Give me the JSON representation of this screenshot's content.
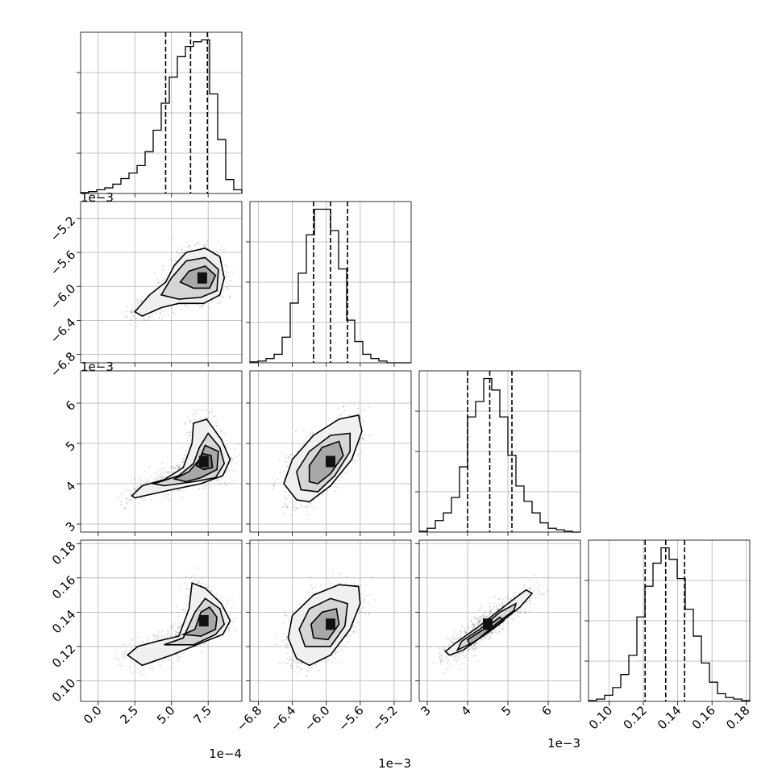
{
  "chart_data": {
    "type": "scatter",
    "subtype": "corner-plot",
    "grid": true,
    "parameters": [
      {
        "id": "p0",
        "multiplier_label": "1e−4",
        "range": [
          -1.2,
          9.8
        ],
        "ticks": [
          0.0,
          2.5,
          5.0,
          7.5
        ],
        "tick_labels": [
          "0.0",
          "2.5",
          "5.0",
          "7.5"
        ],
        "quantiles": [
          4.6,
          6.3,
          7.45
        ],
        "histogram": {
          "edges": [
            -1.2,
            -0.65,
            -0.1,
            0.45,
            1.0,
            1.55,
            2.1,
            2.65,
            3.2,
            3.75,
            4.3,
            4.85,
            5.4,
            5.95,
            6.5,
            7.05,
            7.6,
            8.15,
            8.7,
            9.25,
            9.8
          ],
          "counts": [
            1,
            2,
            4,
            6,
            10,
            16,
            22,
            30,
            45,
            68,
            97,
            125,
            147,
            158,
            163,
            165,
            107,
            58,
            15,
            4
          ]
        }
      },
      {
        "id": "p1",
        "multiplier_label": "1e−3",
        "range": [
          -6.9,
          -5.0
        ],
        "ticks": [
          -6.8,
          -6.4,
          -6.0,
          -5.6,
          -5.2
        ],
        "tick_labels": [
          "−6.8",
          "−6.4",
          "−6.0",
          "−5.6",
          "−5.2"
        ],
        "quantiles": [
          -6.15,
          -5.95,
          -5.75
        ],
        "histogram": {
          "edges": [
            -6.9,
            -6.805,
            -6.71,
            -6.615,
            -6.52,
            -6.425,
            -6.33,
            -6.235,
            -6.14,
            -6.045,
            -5.95,
            -5.855,
            -5.76,
            -5.665,
            -5.57,
            -5.475,
            -5.38,
            -5.285,
            -5.19,
            -5.095,
            -5.0
          ],
          "counts": [
            1,
            2,
            5,
            10,
            30,
            70,
            105,
            150,
            180,
            180,
            155,
            110,
            50,
            25,
            10,
            5,
            2,
            0,
            0,
            0
          ]
        }
      },
      {
        "id": "p2",
        "multiplier_label": "1e−3",
        "range": [
          2.8,
          6.8
        ],
        "ticks": [
          3,
          4,
          5,
          6
        ],
        "tick_labels": [
          "3",
          "4",
          "5",
          "6"
        ],
        "quantiles": [
          4.0,
          4.55,
          5.1
        ],
        "histogram": {
          "edges": [
            2.8,
            3.0,
            3.2,
            3.4,
            3.6,
            3.8,
            4.0,
            4.2,
            4.4,
            4.6,
            4.8,
            5.0,
            5.2,
            5.4,
            5.6,
            5.8,
            6.0,
            6.2,
            6.4,
            6.6,
            6.8
          ],
          "counts": [
            1,
            5,
            15,
            25,
            45,
            85,
            150,
            170,
            200,
            185,
            150,
            100,
            60,
            40,
            25,
            12,
            5,
            3,
            1,
            0
          ]
        }
      },
      {
        "id": "p3",
        "multiplier_label": "",
        "range": [
          0.088,
          0.182
        ],
        "ticks": [
          0.1,
          0.12,
          0.14,
          0.16,
          0.18
        ],
        "tick_labels": [
          "0.10",
          "0.12",
          "0.14",
          "0.16",
          "0.18"
        ],
        "quantiles": [
          0.121,
          0.133,
          0.144
        ],
        "histogram": {
          "edges": [
            0.088,
            0.0927,
            0.0974,
            0.1021,
            0.1068,
            0.1115,
            0.1162,
            0.1209,
            0.1256,
            0.1303,
            0.135,
            0.1397,
            0.1444,
            0.1491,
            0.1538,
            0.1585,
            0.1632,
            0.1679,
            0.1726,
            0.1773,
            0.182
          ],
          "counts": [
            1,
            3,
            8,
            18,
            35,
            60,
            110,
            150,
            180,
            200,
            185,
            160,
            120,
            85,
            50,
            25,
            10,
            5,
            3,
            1
          ]
        }
      }
    ],
    "pairs": [
      {
        "x": 0,
        "y": 1,
        "mode": [
          7.1,
          -5.9
        ],
        "contours": [
          [
            [
              2.5,
              -6.3
            ],
            [
              3.5,
              -6.1
            ],
            [
              4.6,
              -5.95
            ],
            [
              5.2,
              -5.75
            ],
            [
              6.0,
              -5.6
            ],
            [
              7.3,
              -5.55
            ],
            [
              8.3,
              -5.65
            ],
            [
              8.6,
              -5.9
            ],
            [
              8.3,
              -6.1
            ],
            [
              7.2,
              -6.2
            ],
            [
              5.5,
              -6.2
            ],
            [
              4.3,
              -6.25
            ],
            [
              3.0,
              -6.35
            ],
            [
              2.5,
              -6.3
            ]
          ],
          [
            [
              4.3,
              -6.1
            ],
            [
              5.0,
              -5.9
            ],
            [
              6.0,
              -5.7
            ],
            [
              7.3,
              -5.66
            ],
            [
              8.2,
              -5.8
            ],
            [
              8.1,
              -6.05
            ],
            [
              7.0,
              -6.13
            ],
            [
              5.5,
              -6.15
            ],
            [
              4.3,
              -6.1
            ]
          ],
          [
            [
              5.6,
              -5.95
            ],
            [
              6.2,
              -5.82
            ],
            [
              7.3,
              -5.76
            ],
            [
              8.0,
              -5.87
            ],
            [
              7.6,
              -6.02
            ],
            [
              6.5,
              -6.02
            ],
            [
              5.6,
              -5.95
            ]
          ]
        ]
      },
      {
        "x": 0,
        "y": 2,
        "mode": [
          7.2,
          4.55
        ],
        "contours": [
          [
            [
              2.3,
              3.7
            ],
            [
              3.0,
              3.95
            ],
            [
              4.5,
              4.1
            ],
            [
              5.8,
              4.4
            ],
            [
              6.4,
              5.0
            ],
            [
              6.5,
              5.5
            ],
            [
              7.4,
              5.6
            ],
            [
              8.4,
              5.1
            ],
            [
              9.0,
              4.6
            ],
            [
              8.5,
              4.2
            ],
            [
              7.0,
              4.0
            ],
            [
              5.0,
              3.85
            ],
            [
              2.5,
              3.65
            ],
            [
              2.3,
              3.7
            ]
          ],
          [
            [
              3.8,
              4.0
            ],
            [
              5.5,
              4.2
            ],
            [
              6.5,
              4.5
            ],
            [
              6.9,
              4.9
            ],
            [
              7.5,
              5.25
            ],
            [
              8.3,
              4.9
            ],
            [
              8.6,
              4.5
            ],
            [
              8.0,
              4.15
            ],
            [
              6.5,
              4.05
            ],
            [
              4.5,
              3.95
            ],
            [
              3.8,
              4.0
            ]
          ],
          [
            [
              5.2,
              4.12
            ],
            [
              6.2,
              4.3
            ],
            [
              6.9,
              4.6
            ],
            [
              7.3,
              4.95
            ],
            [
              8.2,
              4.8
            ],
            [
              8.1,
              4.35
            ],
            [
              7.0,
              4.15
            ],
            [
              6.0,
              4.05
            ],
            [
              5.2,
              4.12
            ]
          ],
          [
            [
              6.7,
              4.45
            ],
            [
              7.1,
              4.75
            ],
            [
              7.7,
              4.7
            ],
            [
              7.8,
              4.4
            ],
            [
              7.2,
              4.35
            ],
            [
              6.7,
              4.45
            ]
          ]
        ]
      },
      {
        "x": 1,
        "y": 2,
        "mode": [
          -5.95,
          4.55
        ],
        "contours": [
          [
            [
              -6.35,
              3.6
            ],
            [
              -6.5,
              4.0
            ],
            [
              -6.4,
              4.6
            ],
            [
              -6.15,
              5.2
            ],
            [
              -5.85,
              5.6
            ],
            [
              -5.62,
              5.7
            ],
            [
              -5.58,
              5.3
            ],
            [
              -5.7,
              4.6
            ],
            [
              -5.95,
              3.95
            ],
            [
              -6.2,
              3.55
            ],
            [
              -6.35,
              3.6
            ]
          ],
          [
            [
              -6.3,
              3.85
            ],
            [
              -6.35,
              4.3
            ],
            [
              -6.2,
              4.8
            ],
            [
              -5.95,
              5.2
            ],
            [
              -5.72,
              5.25
            ],
            [
              -5.72,
              4.8
            ],
            [
              -5.9,
              4.2
            ],
            [
              -6.1,
              3.8
            ],
            [
              -6.3,
              3.85
            ]
          ],
          [
            [
              -6.2,
              4.05
            ],
            [
              -6.2,
              4.45
            ],
            [
              -6.05,
              4.9
            ],
            [
              -5.85,
              5.05
            ],
            [
              -5.8,
              4.7
            ],
            [
              -5.95,
              4.25
            ],
            [
              -6.1,
              4.0
            ],
            [
              -6.2,
              4.05
            ]
          ]
        ]
      },
      {
        "x": 0,
        "y": 3,
        "mode": [
          7.2,
          0.135
        ],
        "contours": [
          [
            [
              2.0,
              0.115
            ],
            [
              2.7,
              0.12
            ],
            [
              4.0,
              0.123
            ],
            [
              5.5,
              0.126
            ],
            [
              6.2,
              0.142
            ],
            [
              6.4,
              0.157
            ],
            [
              7.3,
              0.154
            ],
            [
              8.4,
              0.145
            ],
            [
              9.0,
              0.135
            ],
            [
              8.5,
              0.127
            ],
            [
              7.0,
              0.122
            ],
            [
              5.0,
              0.115
            ],
            [
              3.0,
              0.109
            ],
            [
              2.0,
              0.115
            ]
          ],
          [
            [
              4.5,
              0.121
            ],
            [
              5.8,
              0.125
            ],
            [
              6.6,
              0.14
            ],
            [
              7.3,
              0.148
            ],
            [
              8.3,
              0.142
            ],
            [
              8.6,
              0.133
            ],
            [
              8.0,
              0.127
            ],
            [
              6.5,
              0.121
            ],
            [
              4.5,
              0.121
            ]
          ],
          [
            [
              5.8,
              0.127
            ],
            [
              6.6,
              0.13
            ],
            [
              7.0,
              0.14
            ],
            [
              7.6,
              0.143
            ],
            [
              8.1,
              0.137
            ],
            [
              8.0,
              0.13
            ],
            [
              7.0,
              0.126
            ],
            [
              5.8,
              0.127
            ]
          ]
        ]
      },
      {
        "x": 1,
        "y": 3,
        "mode": [
          -5.95,
          0.133
        ],
        "contours": [
          [
            [
              -6.35,
              0.113
            ],
            [
              -6.45,
              0.125
            ],
            [
              -6.4,
              0.138
            ],
            [
              -6.15,
              0.15
            ],
            [
              -5.85,
              0.156
            ],
            [
              -5.62,
              0.155
            ],
            [
              -5.6,
              0.145
            ],
            [
              -5.72,
              0.13
            ],
            [
              -5.95,
              0.115
            ],
            [
              -6.2,
              0.109
            ],
            [
              -6.35,
              0.113
            ]
          ],
          [
            [
              -6.25,
              0.12
            ],
            [
              -6.32,
              0.13
            ],
            [
              -6.2,
              0.142
            ],
            [
              -5.95,
              0.148
            ],
            [
              -5.75,
              0.145
            ],
            [
              -5.78,
              0.132
            ],
            [
              -5.95,
              0.12
            ],
            [
              -6.25,
              0.12
            ]
          ],
          [
            [
              -6.15,
              0.125
            ],
            [
              -6.18,
              0.133
            ],
            [
              -6.05,
              0.14
            ],
            [
              -5.88,
              0.142
            ],
            [
              -5.85,
              0.133
            ],
            [
              -5.98,
              0.124
            ],
            [
              -6.15,
              0.125
            ]
          ]
        ]
      },
      {
        "x": 2,
        "y": 3,
        "mode": [
          4.5,
          0.133
        ],
        "contours": [
          [
            [
              3.55,
              0.115
            ],
            [
              3.45,
              0.117
            ],
            [
              3.7,
              0.122
            ],
            [
              4.3,
              0.132
            ],
            [
              5.0,
              0.145
            ],
            [
              5.45,
              0.153
            ],
            [
              5.6,
              0.151
            ],
            [
              5.3,
              0.143
            ],
            [
              4.6,
              0.13
            ],
            [
              3.9,
              0.118
            ],
            [
              3.55,
              0.115
            ]
          ],
          [
            [
              3.75,
              0.118
            ],
            [
              3.85,
              0.123
            ],
            [
              4.3,
              0.13
            ],
            [
              4.8,
              0.14
            ],
            [
              5.2,
              0.145
            ],
            [
              5.15,
              0.141
            ],
            [
              4.7,
              0.133
            ],
            [
              4.2,
              0.123
            ],
            [
              3.75,
              0.118
            ]
          ],
          [
            [
              4.0,
              0.124
            ],
            [
              4.4,
              0.13
            ],
            [
              4.8,
              0.137
            ],
            [
              4.9,
              0.135
            ],
            [
              4.5,
              0.128
            ],
            [
              4.05,
              0.121
            ],
            [
              4.0,
              0.124
            ]
          ]
        ]
      }
    ]
  }
}
